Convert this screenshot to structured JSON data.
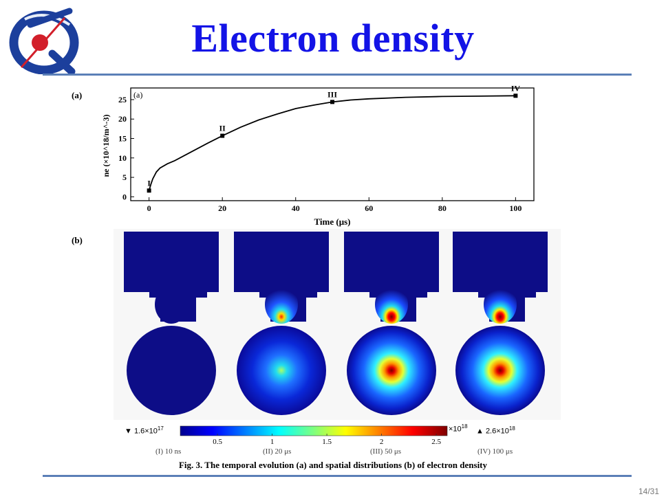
{
  "slide": {
    "title": "Electron density",
    "page_number": "14/31",
    "panel_a_label": "(a)",
    "panel_b_label": "(b)",
    "caption": "Fig. 3.  The temporal evolution (a) and spatial distributions (b) of electron density",
    "colors": {
      "title": "#1313e6",
      "rule": "#5b7fb7"
    }
  },
  "chart_data": {
    "type": "line",
    "title": "",
    "inset_label": "(a)",
    "xlabel": "Time  (μs)",
    "ylabel": "ne (×10^18/m^-3)",
    "xlim": [
      -5,
      105
    ],
    "ylim": [
      -1,
      28
    ],
    "x_ticks": [
      "0",
      "20",
      "40",
      "60",
      "80",
      "100"
    ],
    "y_ticks": [
      "0",
      "5",
      "10",
      "15",
      "20",
      "25"
    ],
    "series": [
      {
        "x": [
          0,
          0.5,
          1,
          2,
          3,
          5,
          7,
          10,
          13,
          16,
          20,
          25,
          30,
          35,
          40,
          45,
          50,
          55,
          60,
          70,
          80,
          90,
          100
        ],
        "y": [
          1.6,
          3.2,
          4.6,
          6.4,
          7.4,
          8.5,
          9.3,
          10.8,
          12.3,
          13.8,
          15.7,
          17.9,
          19.8,
          21.3,
          22.7,
          23.6,
          24.4,
          24.9,
          25.2,
          25.6,
          25.8,
          25.9,
          26.0
        ]
      }
    ],
    "markers": [
      {
        "label": "I",
        "x": 0,
        "y": 1.6
      },
      {
        "label": "II",
        "x": 20,
        "y": 15.7
      },
      {
        "label": "III",
        "x": 50,
        "y": 24.4
      },
      {
        "label": "IV",
        "x": 100,
        "y": 26.0
      }
    ]
  },
  "maps": {
    "peak_intensity": [
      0.0,
      0.3,
      0.85,
      1.0
    ],
    "labels": [
      "(I) 10 ns",
      "(II) 20 μs",
      "(III) 50 μs",
      "(IV) 100 μs"
    ]
  },
  "colorbar": {
    "min_label": "▼ 1.6×10",
    "min_exp": "17",
    "max_label": "▲ 2.6×10",
    "max_exp": "18",
    "scale_label": "×10",
    "scale_exp": "18",
    "ticks": [
      "0.5",
      "1",
      "1.5",
      "2",
      "2.5"
    ],
    "tick_values": [
      0.5,
      1,
      1.5,
      2,
      2.5
    ],
    "range": [
      0.16,
      2.6
    ]
  }
}
